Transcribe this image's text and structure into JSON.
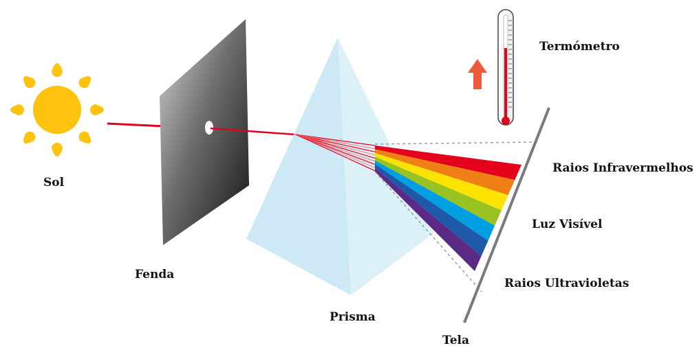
{
  "labels": {
    "sun": "Sol",
    "slit": "Fenda",
    "prism": "Prisma",
    "screen": "Tela",
    "thermometer": "Termómetro",
    "infrared": "Raios Infravermelhos",
    "visible": "Luz Visível",
    "ultraviolet": "Raios Ultravioletas"
  },
  "colors": {
    "sun": "#fdc30f",
    "ray": "#e3001b",
    "arrow": "#ef5a3c",
    "prism": "#bfe3f2",
    "spectrum": [
      "#e3001b",
      "#f07f15",
      "#fde400",
      "#98c322",
      "#009fe3",
      "#1d59a8",
      "#5b2a86"
    ]
  }
}
